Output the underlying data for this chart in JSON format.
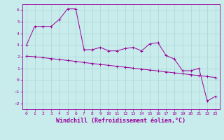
{
  "xlabel": "Windchill (Refroidissement éolien,°C)",
  "bg_color": "#c8ecec",
  "grid_color": "#aad4d4",
  "line_color": "#990099",
  "x_line1": [
    0,
    1,
    2,
    3,
    4,
    5,
    6,
    7,
    8,
    9,
    10,
    11,
    12,
    13,
    14,
    15,
    16,
    17,
    18,
    19,
    20,
    21,
    22,
    23
  ],
  "y_line1": [
    3.0,
    4.6,
    4.6,
    4.6,
    5.2,
    6.1,
    6.1,
    2.6,
    2.6,
    2.8,
    2.5,
    2.5,
    2.7,
    2.8,
    2.5,
    3.1,
    3.2,
    2.1,
    1.8,
    0.8,
    0.8,
    1.0,
    -1.8,
    -1.4
  ],
  "x_line2": [
    0,
    1,
    2,
    3,
    4,
    5,
    6,
    7,
    8,
    9,
    10,
    11,
    12,
    13,
    14,
    15,
    16,
    17,
    18,
    19,
    20,
    21,
    22,
    23
  ],
  "y_line2": [
    2.05,
    2.0,
    1.92,
    1.84,
    1.76,
    1.68,
    1.6,
    1.5,
    1.42,
    1.34,
    1.26,
    1.18,
    1.1,
    1.02,
    0.94,
    0.86,
    0.78,
    0.7,
    0.62,
    0.54,
    0.46,
    0.38,
    0.3,
    0.22
  ],
  "xlim": [
    -0.5,
    23.5
  ],
  "ylim": [
    -2.5,
    6.5
  ],
  "yticks": [
    -2,
    -1,
    0,
    1,
    2,
    3,
    4,
    5,
    6
  ],
  "xticks": [
    0,
    1,
    2,
    3,
    4,
    5,
    6,
    7,
    8,
    9,
    10,
    11,
    12,
    13,
    14,
    15,
    16,
    17,
    18,
    19,
    20,
    21,
    22,
    23
  ],
  "tick_fontsize": 4.5,
  "label_fontsize": 6.0
}
